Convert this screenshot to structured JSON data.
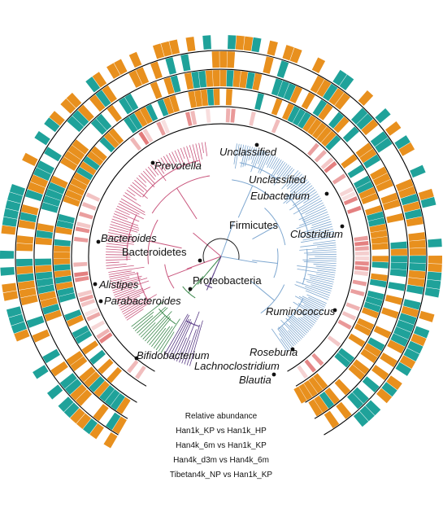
{
  "colors": {
    "orange": "#E8901E",
    "teal": "#1FA29A",
    "bacteroidetes": "#C9567D",
    "firmicutes": "#7EA7D0",
    "actinobacteria": "#3E8A4E",
    "proteobacteria": "#5A3C86",
    "abundance": "#D84A4A"
  },
  "phyla": [
    {
      "key": "firmicutes",
      "label": "Firmicutes"
    },
    {
      "key": "bacteroidetes",
      "label": "Bacteroidetes"
    },
    {
      "key": "proteobacteria",
      "label": "Proteobacteria"
    }
  ],
  "genera": [
    {
      "key": "unclassified1",
      "label": "Unclassified"
    },
    {
      "key": "unclassified2",
      "label": "Unclassified"
    },
    {
      "key": "eubacterium",
      "label": "Eubacterium"
    },
    {
      "key": "clostridium",
      "label": "Clostridium"
    },
    {
      "key": "ruminococcus",
      "label": "Ruminococcus"
    },
    {
      "key": "roseburia",
      "label": "Roseburia"
    },
    {
      "key": "lachnoclostridium",
      "label": "Lachnoclostridium"
    },
    {
      "key": "blautia",
      "label": "Blautia"
    },
    {
      "key": "bifidobacterium",
      "label": "Bifidobacterium"
    },
    {
      "key": "parabacteroides",
      "label": "Parabacteroides"
    },
    {
      "key": "alistipes",
      "label": "Alistipes"
    },
    {
      "key": "bacteroides",
      "label": "Bacteroides"
    },
    {
      "key": "prevotella",
      "label": "Prevotella"
    }
  ],
  "rings": [
    {
      "key": "relative_abundance",
      "label": "Relative abundance"
    },
    {
      "key": "han1k_kp_vs_han1k_hp",
      "label": "Han1k_KP vs Han1k_HP"
    },
    {
      "key": "han4k_6m_vs_han1k_kp",
      "label": "Han4k_6m vs Han1k_KP"
    },
    {
      "key": "han4k_d3m_vs_han4k_6m",
      "label": "Han4k_d3m vs Han4k_6m"
    },
    {
      "key": "tibetan4k_np_vs_han1k_kp",
      "label": "Tibetan4k_NP vs Han1k_KP"
    }
  ]
}
